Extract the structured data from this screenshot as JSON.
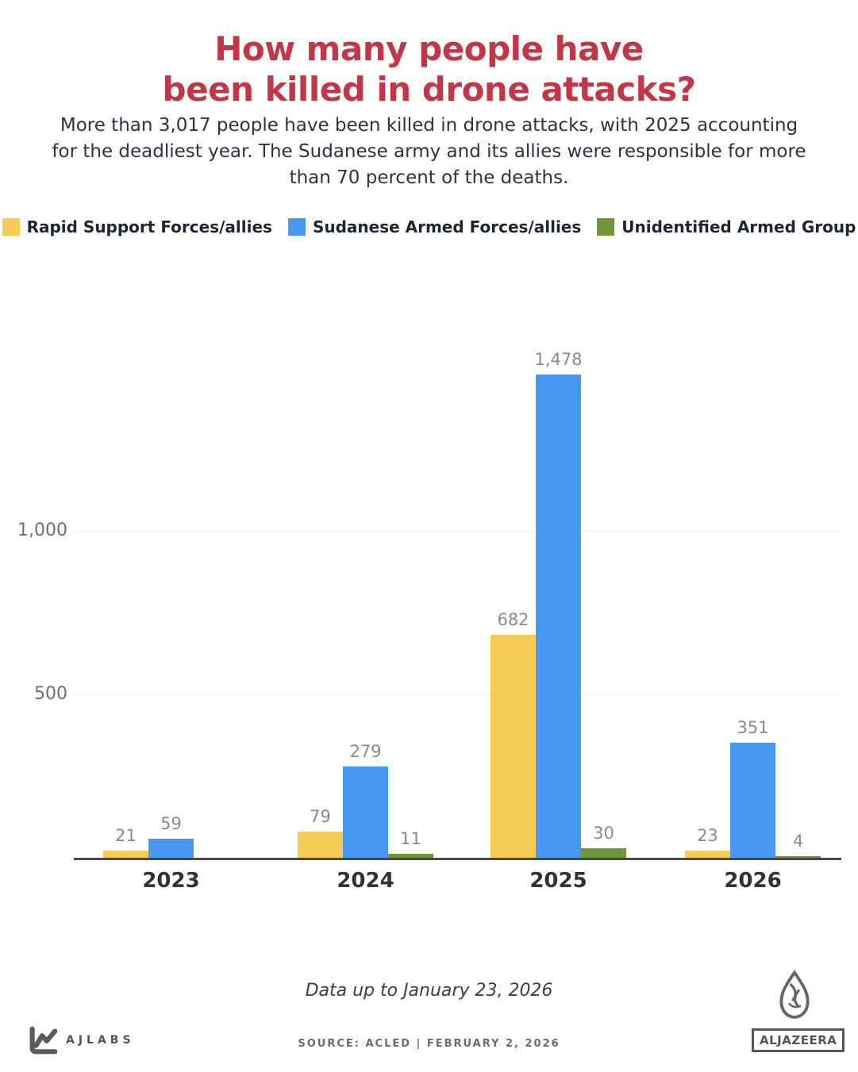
{
  "header": {
    "title_line1": "How many people have",
    "title_line2": "been killed in drone attacks?",
    "subtitle": "More than 3,017 people have been killed in drone attacks, with 2025 accounting for the deadliest year. The Sudanese army and its allies were responsible for more than 70 percent of the deaths."
  },
  "legend": {
    "items": [
      {
        "label": "Rapid Support Forces/allies",
        "color": "#F4CC55"
      },
      {
        "label": "Sudanese Armed Forces/allies",
        "color": "#4897F0"
      },
      {
        "label": "Unidentified Armed Group",
        "color": "#6F9637"
      }
    ]
  },
  "chart_data": {
    "type": "bar",
    "title": "How many people have been killed in drone attacks?",
    "categories": [
      "2023",
      "2024",
      "2025",
      "2026"
    ],
    "series": [
      {
        "name": "Rapid Support Forces/allies",
        "color": "#F4CC55",
        "values": [
          21,
          79,
          682,
          23
        ],
        "labels": [
          "21",
          "79",
          "682",
          "23"
        ]
      },
      {
        "name": "Sudanese Armed Forces/allies",
        "color": "#4897F0",
        "values": [
          59,
          279,
          1478,
          351
        ],
        "labels": [
          "59",
          "279",
          "1,478",
          "351"
        ]
      },
      {
        "name": "Unidentified Armed Group",
        "color": "#6F9637",
        "values": [
          null,
          11,
          30,
          4
        ],
        "labels": [
          null,
          "11",
          "30",
          "4"
        ]
      }
    ],
    "xlabel": "",
    "ylabel": "",
    "ylim": [
      0,
      1600
    ],
    "yticks": [
      {
        "value": 500,
        "label": "500"
      },
      {
        "value": 1000,
        "label": "1,000"
      }
    ],
    "grid": "horizontal",
    "legend_position": "top",
    "data_labels": true
  },
  "footer": {
    "note": "Data up to January 23, 2026",
    "source": "SOURCE: ACLED | FEBRUARY 2, 2026",
    "ajlabs_label": "AJLABS",
    "aljazeera_label": "ALJAZEERA"
  },
  "colors": {
    "title_red": "#C23745",
    "subtitle_dark": "#2B3440",
    "axis_line": "#48484A",
    "gridline": "#EFEFEF",
    "data_label_gray": "#8A8A8A",
    "logo_gray": "#555555"
  }
}
